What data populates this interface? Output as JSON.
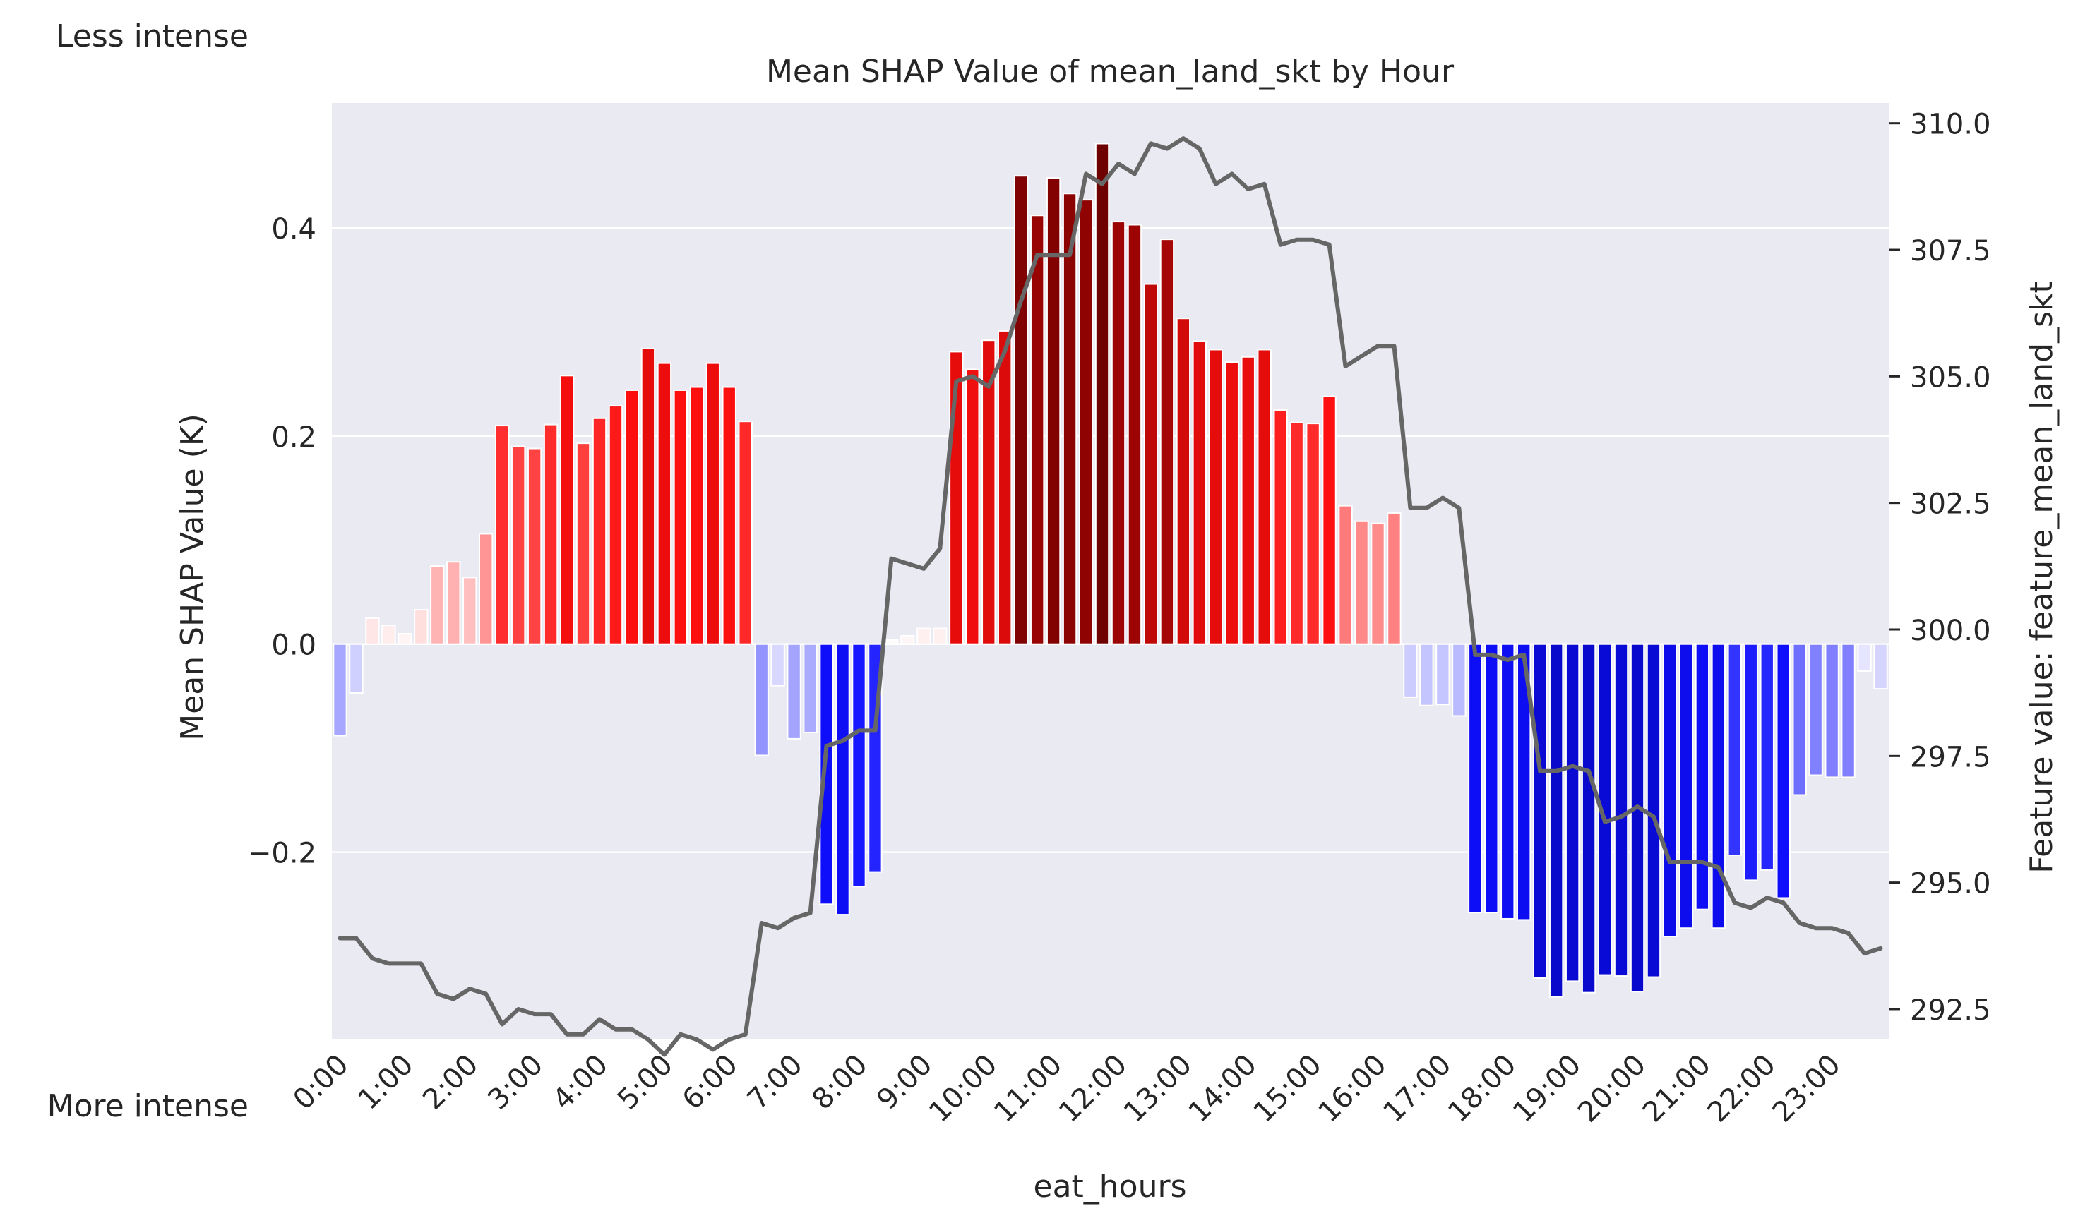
{
  "chart_data": {
    "type": "bar",
    "title": "Mean SHAP Value of mean_land_skt by Hour",
    "xlabel": "eat_hours",
    "ylabel": "Mean SHAP Value (K)",
    "y2label": "Feature value: feature_mean_land_skt",
    "colorbar_top_label": "Less intense",
    "colorbar_bottom_label": "More intense",
    "bars_per_hour": 4,
    "ylim": [
      -0.38,
      0.52
    ],
    "yticks": [
      -0.2,
      0.0,
      0.2,
      0.4
    ],
    "yticklabels": [
      "−0.2",
      "0.0",
      "0.2",
      "0.4"
    ],
    "y2lim": [
      291.9,
      310.4
    ],
    "y2ticks": [
      292.5,
      295.0,
      297.5,
      300.0,
      302.5,
      305.0,
      307.5,
      310.0
    ],
    "y2ticklabels": [
      "292.5",
      "295.0",
      "297.5",
      "300.0",
      "302.5",
      "305.0",
      "307.5",
      "310.0"
    ],
    "xticklabels": [
      "0:00",
      "1:00",
      "2:00",
      "3:00",
      "4:00",
      "5:00",
      "6:00",
      "7:00",
      "8:00",
      "9:00",
      "10:00",
      "11:00",
      "12:00",
      "13:00",
      "14:00",
      "15:00",
      "16:00",
      "17:00",
      "18:00",
      "19:00",
      "20:00",
      "21:00",
      "22:00",
      "23:00"
    ],
    "grid": true,
    "colors": {
      "background": "#eaeaf2",
      "grid": "#ffffff",
      "line": "#666666",
      "bar_edge": "#ffffff",
      "positive_max": "#6e0000",
      "negative_max": "#000080"
    },
    "series": [
      {
        "kind": "bar",
        "values": [
          -0.088,
          -0.047,
          0.025,
          0.018,
          0.01,
          0.033,
          0.075,
          0.079,
          0.064,
          0.106,
          0.21,
          0.19,
          0.188,
          0.211,
          0.258,
          0.193,
          0.217,
          0.229,
          0.244,
          0.284,
          0.27,
          0.244,
          0.247,
          0.27,
          0.247,
          0.214,
          -0.107,
          -0.04,
          -0.091,
          -0.085,
          -0.25,
          -0.26,
          -0.233,
          -0.219,
          0.004,
          0.008,
          0.015,
          0.015,
          0.281,
          0.264,
          0.292,
          0.301,
          0.45,
          0.412,
          0.448,
          0.433,
          0.427,
          0.481,
          0.406,
          0.403,
          0.346,
          0.389,
          0.313,
          0.291,
          0.283,
          0.271,
          0.276,
          0.283,
          0.225,
          0.213,
          0.212,
          0.238,
          0.133,
          0.118,
          0.116,
          0.126,
          -0.051,
          -0.059,
          -0.058,
          -0.069,
          -0.258,
          -0.258,
          -0.264,
          -0.265,
          -0.321,
          -0.339,
          -0.324,
          -0.335,
          -0.318,
          -0.319,
          -0.334,
          -0.32,
          -0.281,
          -0.273,
          -0.255,
          -0.273,
          -0.203,
          -0.227,
          -0.217,
          -0.244,
          -0.145,
          -0.126,
          -0.128,
          -0.128,
          -0.026,
          -0.043
        ]
      },
      {
        "kind": "line",
        "axis": "right",
        "values": [
          293.9,
          293.9,
          293.5,
          293.4,
          293.4,
          293.4,
          292.8,
          292.7,
          292.9,
          292.8,
          292.2,
          292.5,
          292.4,
          292.4,
          292.0,
          292.0,
          292.3,
          292.1,
          292.1,
          291.9,
          291.6,
          292.0,
          291.9,
          291.7,
          291.9,
          292.0,
          294.2,
          294.1,
          294.3,
          294.4,
          297.7,
          297.8,
          298.0,
          298.0,
          301.4,
          301.3,
          301.2,
          301.6,
          304.9,
          305.0,
          304.8,
          305.5,
          306.5,
          307.4,
          307.4,
          307.4,
          309.0,
          308.8,
          309.2,
          309.0,
          309.6,
          309.5,
          309.7,
          309.5,
          308.8,
          309.0,
          308.7,
          308.8,
          307.6,
          307.7,
          307.7,
          307.6,
          305.2,
          305.4,
          305.6,
          305.6,
          302.4,
          302.4,
          302.6,
          302.4,
          299.5,
          299.5,
          299.4,
          299.5,
          297.2,
          297.2,
          297.3,
          297.2,
          296.2,
          296.3,
          296.5,
          296.3,
          295.4,
          295.4,
          295.4,
          295.3,
          294.6,
          294.5,
          294.7,
          294.6,
          294.2,
          294.1,
          294.1,
          294.0,
          293.6,
          293.7
        ]
      }
    ]
  }
}
